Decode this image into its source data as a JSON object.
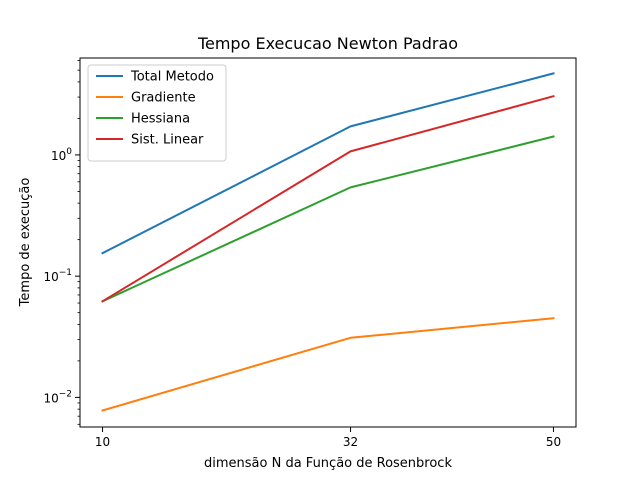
{
  "chart_data": {
    "type": "line",
    "title": "Tempo Execucao Newton Padrao",
    "xlabel": "dimensão N da Função de Rosenbrock",
    "ylabel": "Tempo de execução",
    "yscale": "log",
    "x": [
      10,
      32,
      50
    ],
    "xticks": [
      "10",
      "32",
      "50"
    ],
    "yticks": [
      {
        "value": 0.01,
        "base": "10",
        "exp": "−2"
      },
      {
        "value": 0.1,
        "base": "10",
        "exp": "−1"
      },
      {
        "value": 1,
        "base": "10",
        "exp": "0"
      }
    ],
    "xlim": [
      8.0,
      52.0
    ],
    "ylim": [
      0.0057,
      6.3
    ],
    "grid": false,
    "legend_position": "top-left",
    "series": [
      {
        "name": "Total Metodo",
        "color": "#1f77b4",
        "values": [
          0.155,
          1.72,
          4.7
        ]
      },
      {
        "name": "Gradiente",
        "color": "#ff7f0e",
        "values": [
          0.0078,
          0.031,
          0.045
        ]
      },
      {
        "name": "Hessiana",
        "color": "#2ca02c",
        "values": [
          0.062,
          0.54,
          1.42
        ]
      },
      {
        "name": "Sist. Linear",
        "color": "#d62728",
        "values": [
          0.062,
          1.07,
          3.05
        ]
      }
    ]
  }
}
